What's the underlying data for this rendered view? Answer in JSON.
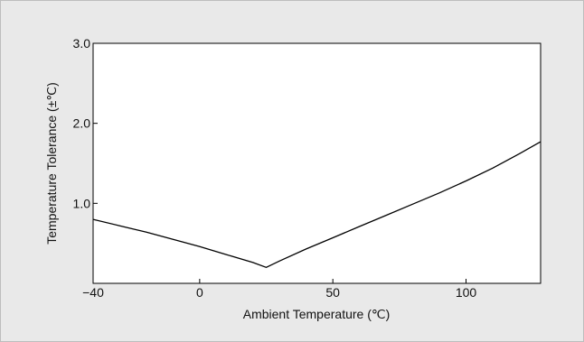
{
  "chart_data": {
    "type": "line",
    "title": "",
    "xlabel": "Ambient Temperature (℃)",
    "ylabel": "Temperature Tolerance (±℃)",
    "xlim": [
      -40,
      128
    ],
    "ylim": [
      0,
      3.0
    ],
    "x_ticks": [
      {
        "value": -40,
        "label": "−40"
      },
      {
        "value": 0,
        "label": "0"
      },
      {
        "value": 50,
        "label": "50"
      },
      {
        "value": 100,
        "label": "100"
      }
    ],
    "y_ticks": [
      {
        "value": 1.0,
        "label": "1.0"
      },
      {
        "value": 2.0,
        "label": "2.0"
      },
      {
        "value": 3.0,
        "label": "3.0"
      }
    ],
    "grid": false,
    "legend": "none",
    "line_color": "#000000",
    "series": [
      {
        "x": [
          -40,
          -30,
          -20,
          -10,
          0,
          10,
          20,
          25,
          30,
          40,
          50,
          60,
          70,
          80,
          90,
          100,
          110,
          120,
          128
        ],
        "y": [
          0.8,
          0.72,
          0.64,
          0.55,
          0.46,
          0.36,
          0.26,
          0.2,
          0.28,
          0.43,
          0.57,
          0.71,
          0.85,
          0.99,
          1.13,
          1.28,
          1.44,
          1.62,
          1.77
        ]
      }
    ]
  }
}
